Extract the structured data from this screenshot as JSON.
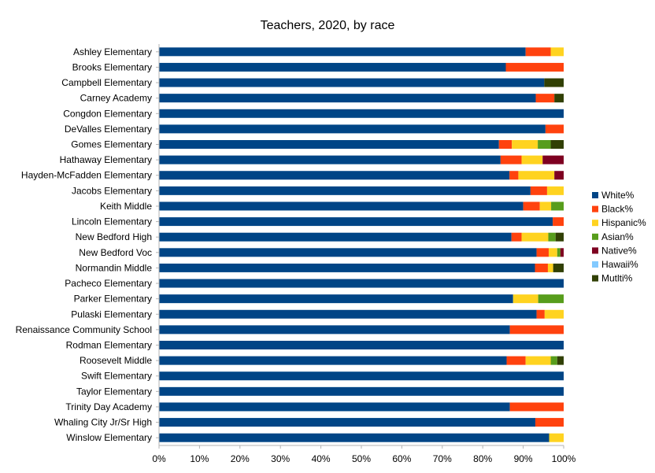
{
  "chart_data": {
    "type": "bar",
    "orientation": "horizontal",
    "stacked": "percent",
    "title": "Teachers, 2020, by race",
    "xlabel": "",
    "ylabel": "",
    "xlim": [
      0,
      100
    ],
    "x_ticks": [
      "0%",
      "10%",
      "20%",
      "30%",
      "40%",
      "50%",
      "60%",
      "70%",
      "80%",
      "90%",
      "100%"
    ],
    "grid": false,
    "legend_position": "right",
    "categories": [
      "Ashley Elementary",
      "Brooks Elementary",
      "Campbell Elementary",
      "Carney Academy",
      "Congdon Elementary",
      "DeValles Elementary",
      "Gomes Elementary",
      "Hathaway Elementary",
      "Hayden-McFadden Elementary",
      "Jacobs Elementary",
      "Keith Middle",
      "Lincoln Elementary",
      "New Bedford High",
      "New Bedford Voc",
      "Normandin Middle",
      "Pacheco Elementary",
      "Parker Elementary",
      "Pulaski Elementary",
      "Renaissance Community School",
      "Rodman Elementary",
      "Roosevelt Middle",
      "Swift Elementary",
      "Taylor Elementary",
      "Trinity Day Academy",
      "Whaling City Jr/Sr High",
      "Winslow Elementary"
    ],
    "series": [
      {
        "name": "White%",
        "color": "#004586",
        "values": [
          90.6,
          85.7,
          95.2,
          93.1,
          100,
          95.5,
          84.0,
          84.4,
          86.6,
          91.8,
          90.0,
          97.3,
          87.1,
          93.3,
          92.9,
          100,
          87.5,
          93.3,
          86.7,
          100,
          85.9,
          100,
          100,
          86.7,
          93.0,
          96.4
        ]
      },
      {
        "name": "Black%",
        "color": "#ff420e",
        "values": [
          6.2,
          14.3,
          0,
          4.6,
          0,
          4.5,
          3.2,
          5.2,
          2.2,
          4.1,
          4.1,
          2.7,
          2.5,
          3.0,
          3.2,
          0,
          0,
          2.0,
          13.3,
          0,
          4.7,
          0,
          0,
          13.3,
          7.0,
          0
        ]
      },
      {
        "name": "Hispanic%",
        "color": "#ffd320",
        "values": [
          3.2,
          0,
          0,
          0,
          0,
          0,
          6.4,
          5.2,
          8.9,
          4.1,
          2.8,
          0,
          6.6,
          2.1,
          1.3,
          0,
          6.2,
          4.7,
          0,
          0,
          6.2,
          0,
          0,
          0,
          0,
          3.6
        ]
      },
      {
        "name": "Asian%",
        "color": "#579d1c",
        "values": [
          0,
          0,
          0,
          0,
          0,
          0,
          3.2,
          0,
          0,
          0,
          3.1,
          0,
          1.8,
          0.8,
          0,
          0,
          6.3,
          0,
          0,
          0,
          1.6,
          0,
          0,
          0,
          0,
          0
        ]
      },
      {
        "name": "Native%",
        "color": "#7e0021",
        "values": [
          0,
          0,
          0,
          0,
          0,
          0,
          0,
          5.2,
          2.3,
          0,
          0,
          0,
          0,
          0.8,
          0,
          0,
          0,
          0,
          0,
          0,
          0,
          0,
          0,
          0,
          0,
          0
        ]
      },
      {
        "name": "Hawaii%",
        "color": "#83caff",
        "values": [
          0,
          0,
          0,
          0,
          0,
          0,
          0,
          0,
          0,
          0,
          0,
          0,
          0,
          0,
          0,
          0,
          0,
          0,
          0,
          0,
          0,
          0,
          0,
          0,
          0,
          0
        ]
      },
      {
        "name": "Mutlti%",
        "color": "#314004",
        "values": [
          0,
          0,
          4.8,
          2.3,
          0,
          0,
          3.2,
          0,
          0,
          0,
          0,
          0,
          2.0,
          0,
          2.6,
          0,
          0,
          0,
          0,
          0,
          1.6,
          0,
          0,
          0,
          0,
          0
        ]
      }
    ]
  }
}
